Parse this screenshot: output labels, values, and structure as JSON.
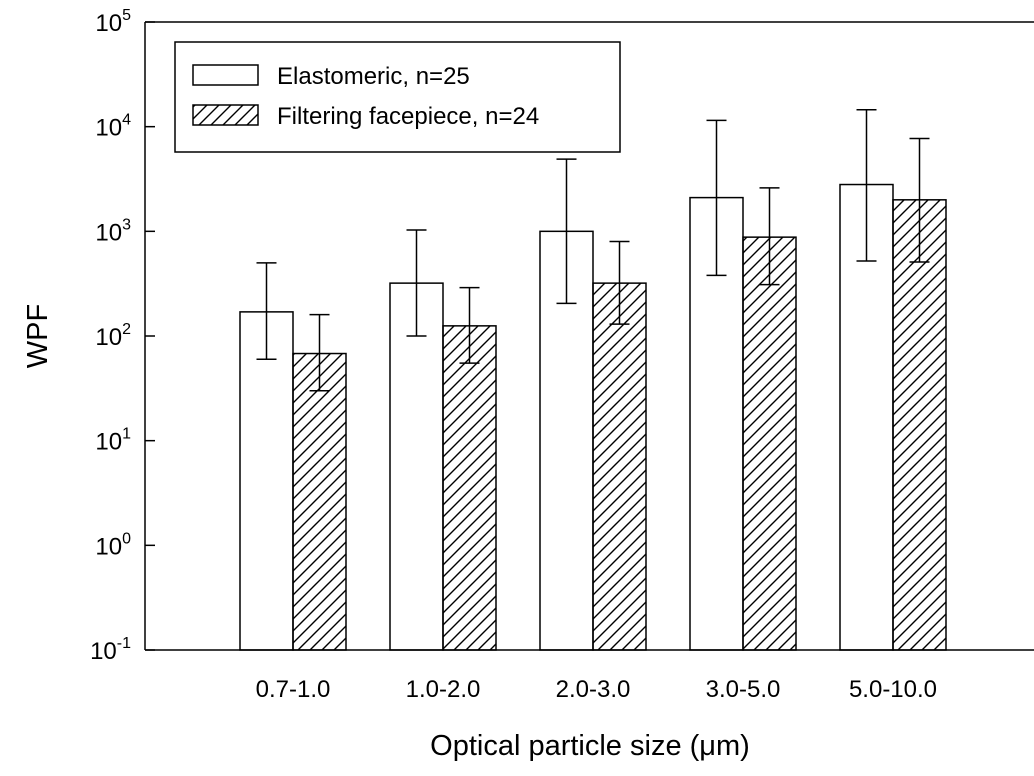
{
  "chart_data": {
    "type": "bar",
    "xlabel": "Optical particle size (",
    "xlabel_mu": "μ",
    "xlabel_unit": "m)",
    "ylabel": "WPF",
    "yscale": "log",
    "ylim": [
      0.1,
      100000
    ],
    "ytick_exponents": [
      "-1",
      "0",
      "1",
      "2",
      "3",
      "4",
      "5"
    ],
    "ytick_base": "10",
    "categories": [
      "0.7-1.0",
      "1.0-2.0",
      "2.0-3.0",
      "3.0-5.0",
      "5.0-10.0"
    ],
    "series": [
      {
        "name": "Elastomeric, n=25",
        "values": [
          170,
          320,
          1000,
          2100,
          2800
        ],
        "err_low": [
          60,
          100,
          205,
          380,
          520
        ],
        "err_high": [
          500,
          1030,
          4900,
          11500,
          14500
        ],
        "fill": "none"
      },
      {
        "name": "Filtering facepiece, n=24",
        "values": [
          68,
          125,
          320,
          880,
          2000
        ],
        "err_low": [
          30,
          55,
          130,
          310,
          510
        ],
        "err_high": [
          160,
          290,
          800,
          2600,
          7700
        ],
        "fill": "hatched"
      }
    ],
    "legend_position": "top-left",
    "grid": false
  },
  "colors": {
    "axis": "#000000",
    "bar_fill": "#ffffff",
    "bar_edge": "#000000",
    "hatch": "#000000"
  }
}
